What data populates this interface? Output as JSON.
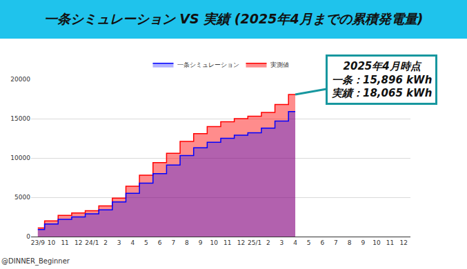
{
  "chart_data": {
    "type": "area",
    "title": "一条シミュレーション VS 実績 (2025年4月までの累積発電量)",
    "categories": [
      "23/9",
      "10",
      "11",
      "12",
      "24/1",
      "2",
      "3",
      "4",
      "5",
      "6",
      "7",
      "8",
      "9",
      "10",
      "11",
      "12",
      "25/1",
      "2",
      "3",
      "4",
      "5",
      "6",
      "7",
      "8",
      "9",
      "10",
      "11",
      "12"
    ],
    "series": [
      {
        "name": "一条シミュレーション",
        "color": "#0000ff",
        "values": [
          900,
          1600,
          2200,
          2500,
          2900,
          3400,
          4400,
          5500,
          6800,
          8000,
          9100,
          10300,
          11300,
          12000,
          12500,
          12900,
          13200,
          13800,
          14700,
          15896,
          null,
          null,
          null,
          null,
          null,
          null,
          null,
          null
        ]
      },
      {
        "name": "実測値",
        "color": "#ff0000",
        "values": [
          1100,
          2000,
          2700,
          3000,
          3300,
          3900,
          4900,
          6400,
          7800,
          9400,
          10600,
          12100,
          13100,
          14000,
          14600,
          15000,
          15300,
          15800,
          16800,
          18065,
          null,
          null,
          null,
          null,
          null,
          null,
          null,
          null
        ]
      }
    ],
    "ylim": [
      0,
      20000
    ],
    "yticks": [
      0,
      5000,
      10000,
      15000,
      20000
    ],
    "grid": true,
    "legend": "top",
    "line_style": "step",
    "annotation": {
      "title": "2025年4月時点",
      "lines": [
        "一条：15,896 kWh",
        "実績：18,065 kWh"
      ]
    },
    "footer": "@DINNER_Beginner"
  }
}
